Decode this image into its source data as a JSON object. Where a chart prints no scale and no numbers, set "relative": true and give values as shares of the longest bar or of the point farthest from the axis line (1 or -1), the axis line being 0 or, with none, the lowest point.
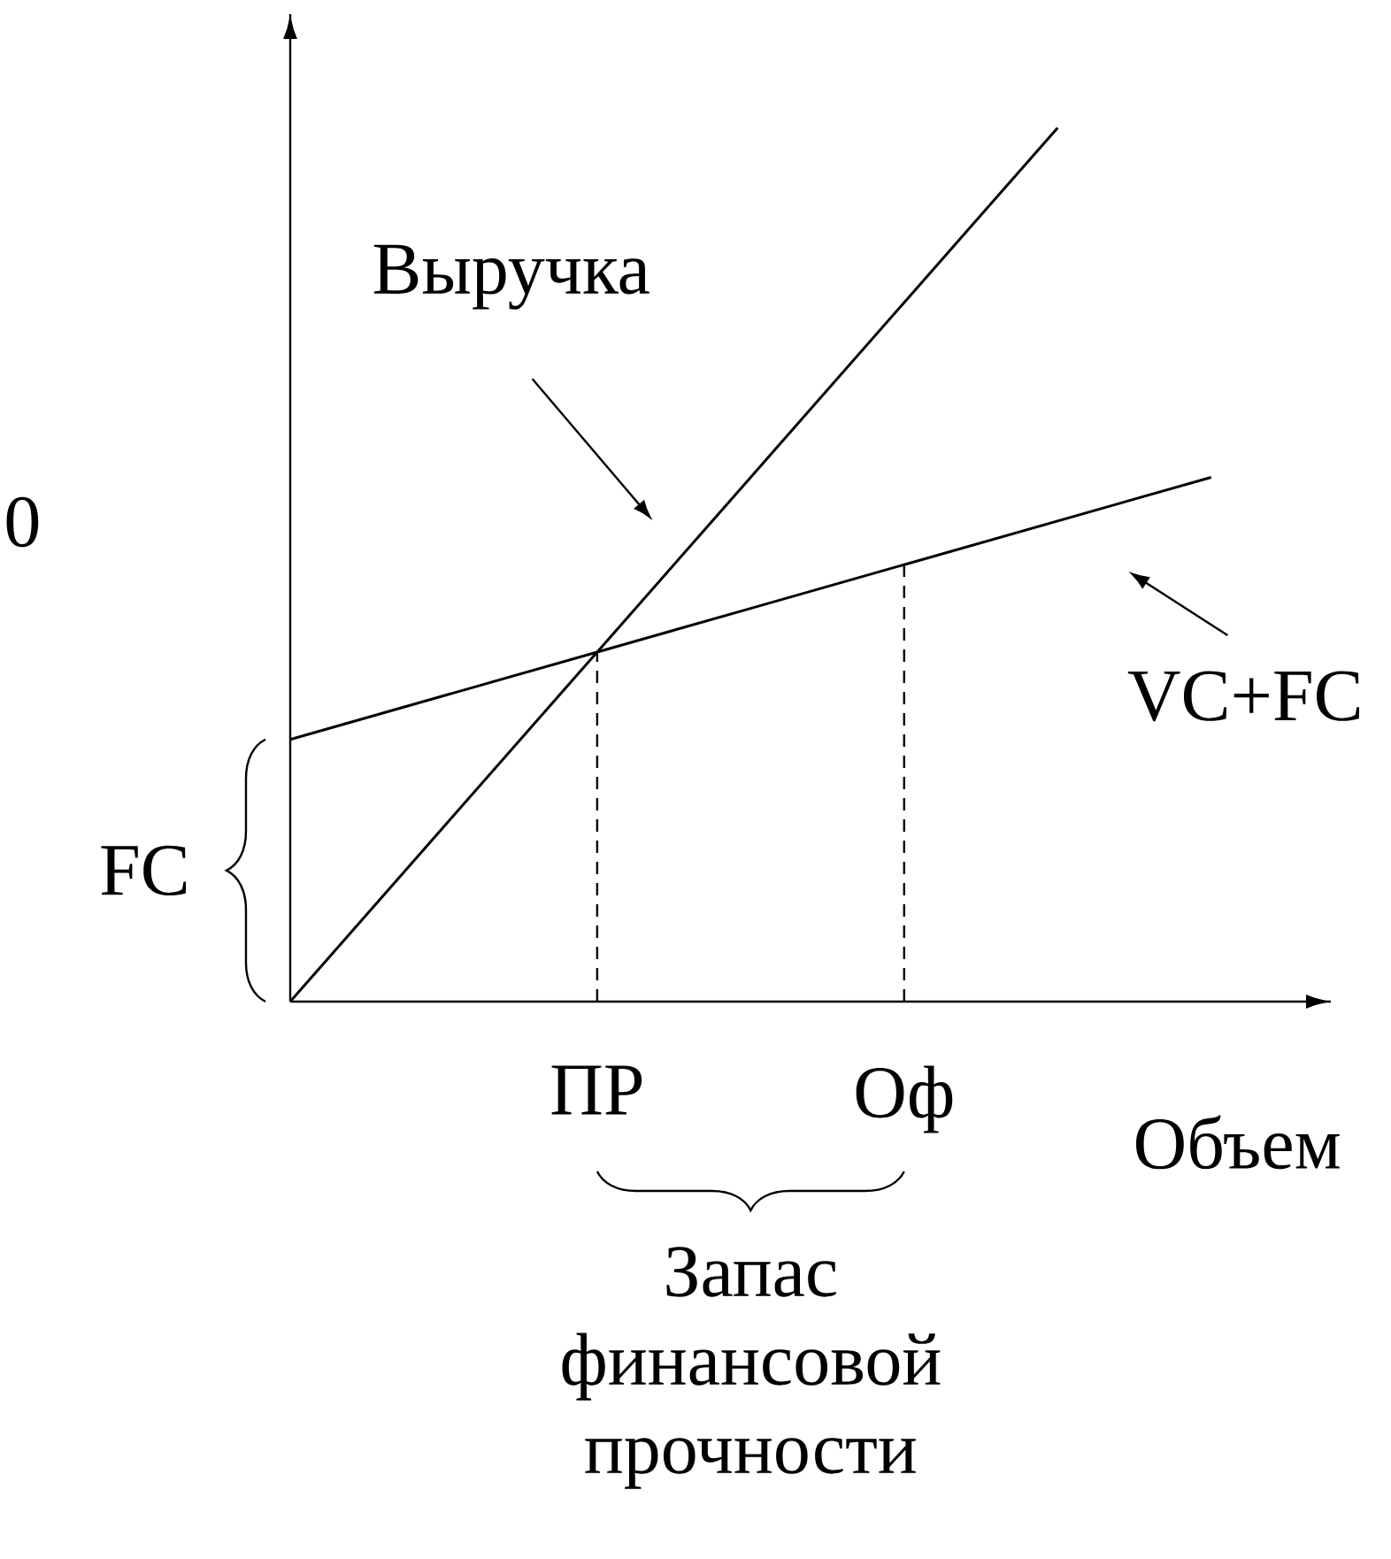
{
  "chart_data": {
    "type": "line",
    "relative": true,
    "xlabel": "Объем",
    "marker": "none",
    "line_style": "solid",
    "categories": [
      null,
      null,
      "ПР",
      null,
      "Оф",
      null,
      null
    ],
    "series": [
      {
        "name": "Выручка",
        "color": "#000000",
        "values": [
          0,
          0.2,
          0.4,
          0.6,
          0.8,
          1,
          null
        ]
      },
      {
        "name": "VC+FC",
        "color": "#000000",
        "values": [
          0.3,
          0.35,
          0.4,
          0.45,
          0.5,
          0.55,
          0.6
        ]
      }
    ],
    "ref_lines": [
      {
        "axis": "x",
        "value": "ПР",
        "line_style": "dashed"
      },
      {
        "axis": "x",
        "value": "Оф",
        "line_style": "dashed"
      }
    ],
    "annotations": [
      "FC",
      "Запас финансовой прочности",
      "0"
    ]
  }
}
